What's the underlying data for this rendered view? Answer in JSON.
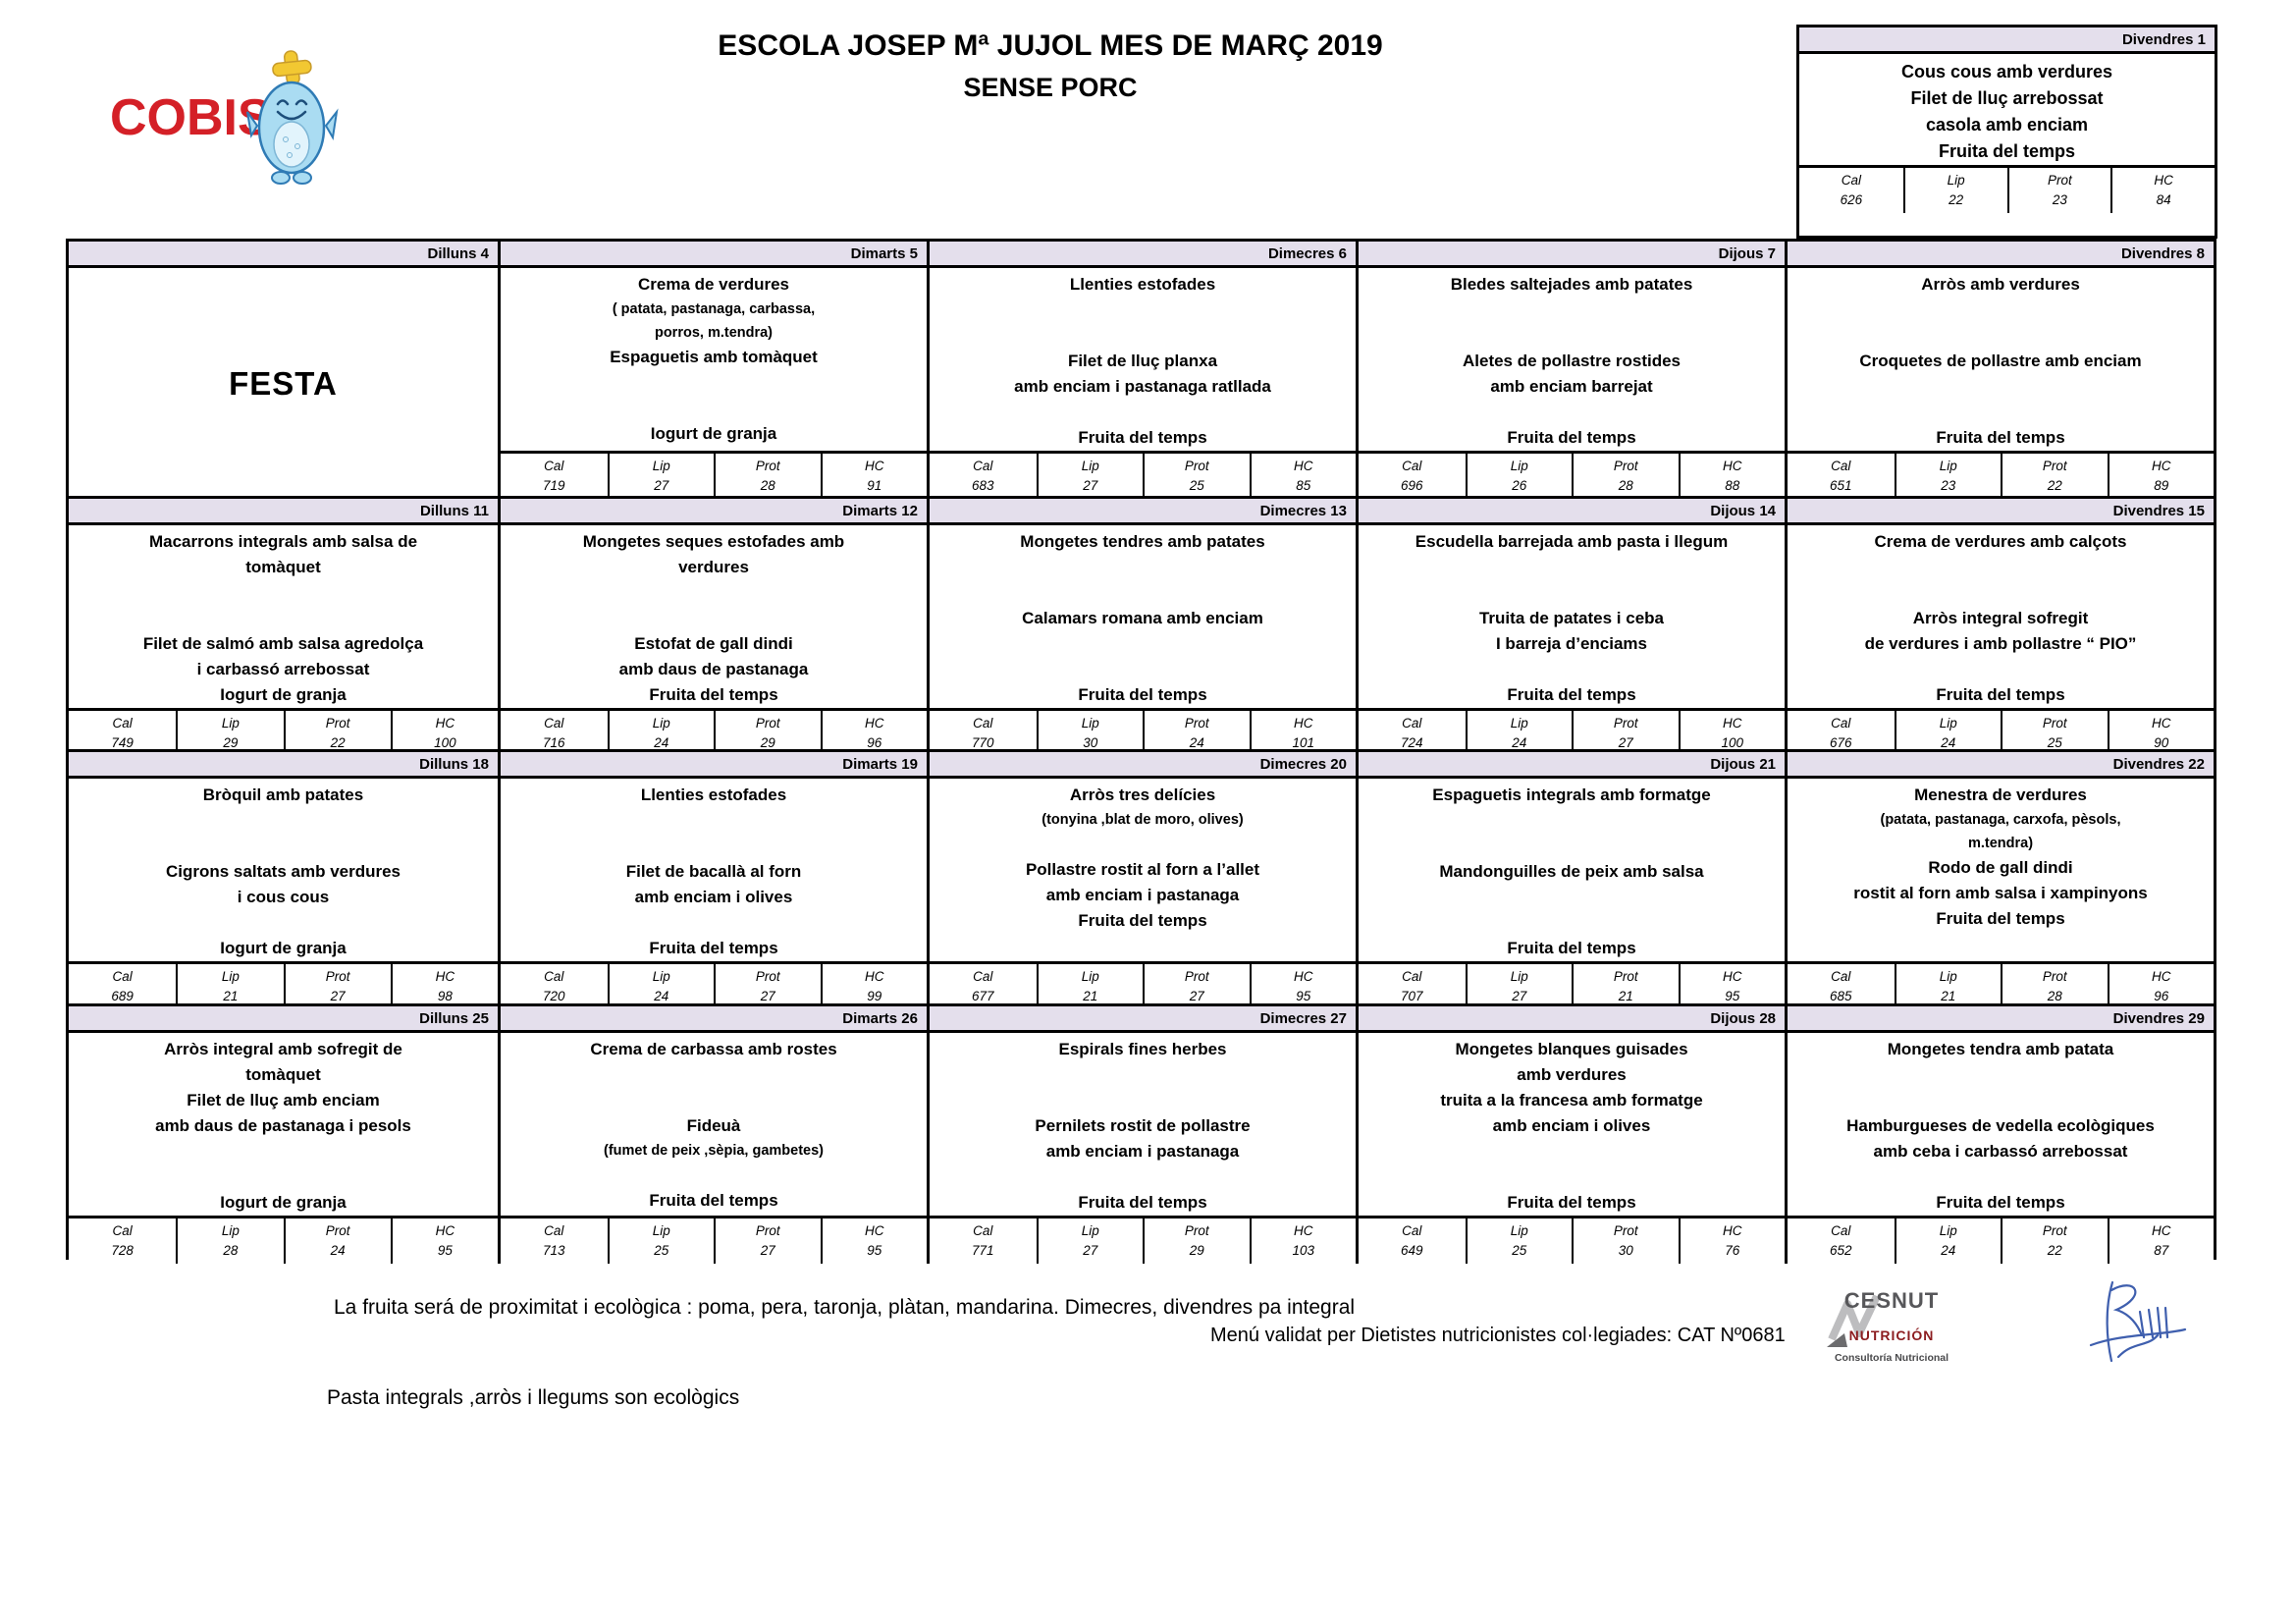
{
  "page": {
    "title_line1": "ESCOLA JOSEP Mª  JUJOL MES DE MARÇ 2019",
    "title_line2": "SENSE PORC"
  },
  "logo": {
    "brand": "COBISA",
    "mascot": "chef-fish"
  },
  "colors": {
    "band": "#e4dfec",
    "border": "#000000",
    "brand_red": "#d42027",
    "cesnut_gray": "#57575a",
    "cesnut_red": "#8c1d20",
    "signature_blue": "#3f5fae"
  },
  "nutrition_labels": [
    "Cal",
    "Lip",
    "Prot",
    "HC"
  ],
  "standalone_day": {
    "header": "Divendres 1",
    "lines": [
      "Cous cous amb verdures",
      "Filet de lluç arrebossat",
      "casola amb enciam",
      "Fruita del temps"
    ],
    "nutrition": {
      "cal": "626",
      "lip": "22",
      "prot": "23",
      "hc": "84"
    }
  },
  "weeks": [
    {
      "days": [
        {
          "header": "Dilluns 4",
          "festa": "FESTA",
          "lines": []
        },
        {
          "header": "Dimarts 5",
          "lines": [
            "Crema de verdures",
            {
              "text": "( patata, pastanaga, carbassa,",
              "small": true
            },
            {
              "text": "porros, m.tendra)",
              "small": true
            },
            "Espaguetis amb tomàquet",
            "",
            "",
            "Iogurt de granja"
          ],
          "nutrition": {
            "cal": "719",
            "lip": "27",
            "prot": "28",
            "hc": "91"
          }
        },
        {
          "header": "Dimecres 6",
          "lines": [
            "Llenties estofades",
            "",
            "",
            "Filet de lluç planxa",
            "amb  enciam i pastanaga ratllada",
            "",
            "Fruita del temps"
          ],
          "nutrition": {
            "cal": "683",
            "lip": "27",
            "prot": "25",
            "hc": "85"
          }
        },
        {
          "header": "Dijous 7",
          "lines": [
            "Bledes saltejades  amb patates",
            "",
            "",
            "Aletes de pollastre rostides",
            "amb enciam barrejat",
            "",
            "Fruita del temps"
          ],
          "nutrition": {
            "cal": "696",
            "lip": "26",
            "prot": "28",
            "hc": "88"
          }
        },
        {
          "header": "Divendres 8",
          "lines": [
            "Arròs amb verdures",
            "",
            "",
            "Croquetes de pollastre amb enciam",
            "",
            "",
            "Fruita del temps"
          ],
          "nutrition": {
            "cal": "651",
            "lip": "23",
            "prot": "22",
            "hc": "89"
          }
        }
      ]
    },
    {
      "days": [
        {
          "header": "Dilluns 11",
          "lines": [
            "Macarrons integrals amb salsa de",
            "tomàquet",
            "",
            "",
            "Filet de salmó amb salsa agredolça",
            "i carbassó arrebossat",
            "Iogurt de granja"
          ],
          "nutrition": {
            "cal": "749",
            "lip": "29",
            "prot": "22",
            "hc": "100"
          }
        },
        {
          "header": "Dimarts 12",
          "lines": [
            "Mongetes seques estofades  amb",
            "verdures",
            "",
            "",
            "Estofat de gall dindi",
            "amb  daus de pastanaga",
            "Fruita del temps"
          ],
          "nutrition": {
            "cal": "716",
            "lip": "24",
            "prot": "29",
            "hc": "96"
          }
        },
        {
          "header": "Dimecres 13",
          "lines": [
            "Mongetes tendres  amb patates",
            "",
            "",
            "Calamars romana amb enciam",
            "",
            "",
            "Fruita del temps"
          ],
          "nutrition": {
            "cal": "770",
            "lip": "30",
            "prot": "24",
            "hc": "101"
          }
        },
        {
          "header": "Dijous 14",
          "lines": [
            "Escudella barrejada amb pasta i llegum",
            "",
            "",
            "Truita de patates i ceba",
            "I barreja d’enciams",
            "",
            "Fruita del temps"
          ],
          "nutrition": {
            "cal": "724",
            "lip": "24",
            "prot": "27",
            "hc": "100"
          }
        },
        {
          "header": "Divendres 15",
          "lines": [
            "Crema de verdures amb  calçots",
            "",
            "",
            "Arròs integral sofregit",
            "de verdures i amb pollastre “ PIO”",
            "",
            "Fruita del temps"
          ],
          "nutrition": {
            "cal": "676",
            "lip": "24",
            "prot": "25",
            "hc": "90"
          }
        }
      ]
    },
    {
      "days": [
        {
          "header": "Dilluns 18",
          "lines": [
            "Bròquil  amb patates",
            "",
            "",
            "Cigrons saltats amb verdures",
            "i cous cous",
            "",
            "Iogurt de granja"
          ],
          "nutrition": {
            "cal": "689",
            "lip": "21",
            "prot": "27",
            "hc": "98"
          }
        },
        {
          "header": "Dimarts 19",
          "lines": [
            "Llenties estofades",
            "",
            "",
            "Filet de bacallà al forn",
            "amb enciam i olives",
            "",
            "Fruita del temps"
          ],
          "nutrition": {
            "cal": "720",
            "lip": "24",
            "prot": "27",
            "hc": "99"
          }
        },
        {
          "header": "Dimecres 20",
          "lines": [
            "Arròs tres delícies",
            {
              "text": "(tonyina ,blat de moro, olives)",
              "small": true
            },
            "",
            "Pollastre rostit  al forn a l’allet",
            "amb enciam i pastanaga",
            "Fruita del temps"
          ],
          "nutrition": {
            "cal": "677",
            "lip": "21",
            "prot": "27",
            "hc": "95"
          }
        },
        {
          "header": "Dijous 21",
          "lines": [
            "Espaguetis integrals amb formatge",
            "",
            "",
            "Mandonguilles de peix amb salsa",
            "",
            "",
            "Fruita del temps"
          ],
          "nutrition": {
            "cal": "707",
            "lip": "27",
            "prot": "21",
            "hc": "95"
          }
        },
        {
          "header": "Divendres 22",
          "lines": [
            "Menestra de verdures",
            {
              "text": "(patata, pastanaga, carxofa, pèsols,",
              "small": true
            },
            {
              "text": "m.tendra)",
              "small": true
            },
            "Rodo de gall dindi",
            "rostit al forn amb salsa i xampinyons",
            "Fruita del temps"
          ],
          "nutrition": {
            "cal": "685",
            "lip": "21",
            "prot": "28",
            "hc": "96"
          }
        }
      ]
    },
    {
      "days": [
        {
          "header": "Dilluns 25",
          "lines": [
            "Arròs integral amb sofregit de",
            "tomàquet",
            "Filet de lluç amb enciam",
            "amb daus de pastanaga i pesols",
            "",
            "",
            "Iogurt de granja"
          ],
          "nutrition": {
            "cal": "728",
            "lip": "28",
            "prot": "24",
            "hc": "95"
          }
        },
        {
          "header": "Dimarts 26",
          "lines": [
            "Crema de carbassa amb rostes",
            "",
            "",
            "Fideuà",
            {
              "text": "(fumet de peix ,sèpia,  gambetes)",
              "small": true
            },
            "",
            "Fruita del temps"
          ],
          "nutrition": {
            "cal": "713",
            "lip": "25",
            "prot": "27",
            "hc": "95"
          }
        },
        {
          "header": "Dimecres 27",
          "lines": [
            "Espirals fines herbes",
            "",
            "",
            "Pernilets rostit de pollastre",
            "amb enciam i pastanaga",
            "",
            "Fruita del temps"
          ],
          "nutrition": {
            "cal": "771",
            "lip": "27",
            "prot": "29",
            "hc": "103"
          }
        },
        {
          "header": "Dijous 28",
          "lines": [
            "Mongetes blanques guisades",
            "amb verdures",
            "truita a la francesa amb formatge",
            "amb enciam i olives",
            "",
            "",
            "Fruita del temps"
          ],
          "nutrition": {
            "cal": "649",
            "lip": "25",
            "prot": "30",
            "hc": "76"
          }
        },
        {
          "header": "Divendres 29",
          "lines": [
            "Mongetes tendra amb patata",
            "",
            "",
            "Hamburgueses de vedella ecològiques",
            "amb ceba i carbassó arrebossat",
            "",
            "Fruita del temps"
          ],
          "nutrition": {
            "cal": "652",
            "lip": "24",
            "prot": "22",
            "hc": "87"
          }
        }
      ]
    }
  ],
  "footer": {
    "line1": "La fruita será de proximitat i ecològica  : poma, pera, taronja, plàtan, mandarina.    Dimecres, divendres  pa integral",
    "line2": "Menú validat per Dietistes nutricionistes col·legiades: CAT Nº0681",
    "line3": "Pasta integrals  ,arròs i llegums son ecològics"
  },
  "cesnut": {
    "name": "CESNUT",
    "sub": "NUTRICIÓN",
    "tagline": "Consultoría Nutricional"
  }
}
